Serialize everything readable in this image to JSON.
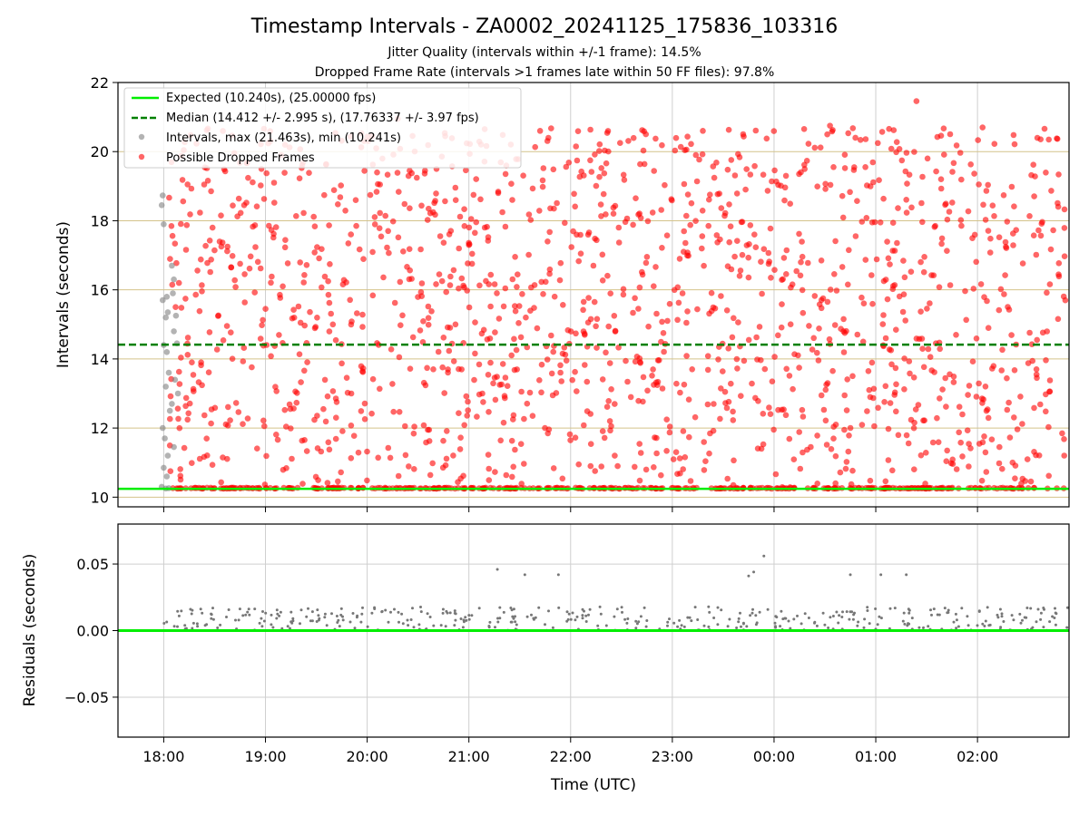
{
  "figure": {
    "title": "Timestamp Intervals - ZA0002_20241125_175836_103316",
    "subtitle_1": "Jitter Quality (intervals within +/-1 frame): 14.5%",
    "subtitle_2": "Dropped Frame Rate (intervals >1 frames late within 50 FF files): 97.8%"
  },
  "colors": {
    "expected": "#00ee00",
    "median": "#008000",
    "intervals": "#808080",
    "dropped": "#ff0000",
    "hgrid_top": "#d4c38a",
    "grid": "#cfcfcf",
    "residual_points": "#777777"
  },
  "chart_data": [
    {
      "type": "scatter",
      "ylabel": "Intervals (seconds)",
      "xlabel": "",
      "x_unit": "hours since 18:00 UTC",
      "xlim": [
        -0.45,
        8.9
      ],
      "ylim": [
        9.72,
        22.0
      ],
      "yticks": [
        10,
        12,
        14,
        16,
        18,
        20,
        22
      ],
      "grid": true,
      "legend_position": "top-left",
      "legend": [
        "Expected (10.240s), (25.00000 fps)",
        "Median (14.412 +/- 2.995 s), (17.76337 +/- 3.97 fps)",
        "Intervals, max (21.463s), min (10.241s)",
        "Possible Dropped Frames"
      ],
      "expected_interval": 10.24,
      "median_interval": 14.412,
      "interval_max": 21.463,
      "interval_min": 10.241,
      "series": [
        {
          "name": "Intervals, max (21.463s), min (10.241s)",
          "points": [
            [
              -0.01,
              18.73
            ],
            [
              -0.02,
              18.45
            ],
            [
              0.0,
              17.9
            ],
            [
              0.03,
              15.8
            ],
            [
              -0.01,
              15.7
            ],
            [
              0.02,
              15.2
            ],
            [
              0.04,
              15.35
            ],
            [
              0.0,
              14.4
            ],
            [
              0.03,
              14.2
            ],
            [
              0.05,
              13.6
            ],
            [
              0.02,
              13.2
            ],
            [
              0.06,
              12.5
            ],
            [
              -0.01,
              12.0
            ],
            [
              0.01,
              11.7
            ],
            [
              0.04,
              11.2
            ],
            [
              0.0,
              10.85
            ],
            [
              0.03,
              10.6
            ],
            [
              -0.02,
              10.3
            ],
            [
              0.02,
              10.25
            ],
            [
              0.05,
              10.26
            ],
            [
              0.08,
              16.7
            ],
            [
              0.1,
              16.3
            ],
            [
              0.09,
              15.9
            ],
            [
              0.12,
              15.25
            ],
            [
              0.1,
              14.8
            ],
            [
              0.13,
              14.45
            ],
            [
              0.11,
              13.4
            ],
            [
              0.14,
              13.0
            ],
            [
              0.08,
              12.7
            ],
            [
              0.1,
              11.45
            ]
          ]
        },
        {
          "name": "Possible Dropped Frames",
          "generator": {
            "count": 1500,
            "x_range": [
              0.05,
              8.9
            ],
            "y_range": [
              10.27,
              21.463
            ],
            "baseline_count": 400,
            "baseline_y": 10.245
          }
        }
      ],
      "hlines": [
        {
          "name": "Expected (10.240s), (25.00000 fps)",
          "y": 10.24,
          "style": "solid"
        },
        {
          "name": "Median (14.412 +/- 2.995 s), (17.76337 +/- 3.97 fps)",
          "y": 14.412,
          "style": "dashed"
        }
      ]
    },
    {
      "type": "scatter",
      "ylabel": "Residuals (seconds)",
      "xlabel": "Time (UTC)",
      "x_unit": "hours since 18:00 UTC",
      "xlim": [
        -0.45,
        8.9
      ],
      "ylim": [
        -0.08,
        0.08
      ],
      "yticks": [
        -0.05,
        0.0,
        0.05
      ],
      "ytick_labels": [
        "−0.05",
        "0.00",
        "0.05"
      ],
      "xticks": [
        0,
        1,
        2,
        3,
        4,
        5,
        6,
        7,
        8
      ],
      "xtick_labels": [
        "18:00",
        "19:00",
        "20:00",
        "21:00",
        "22:00",
        "23:00",
        "00:00",
        "01:00",
        "02:00"
      ],
      "grid": true,
      "zero_line": 0.0,
      "outliers": [
        [
          3.28,
          0.046
        ],
        [
          3.55,
          0.042
        ],
        [
          3.88,
          0.042
        ],
        [
          5.75,
          0.041
        ],
        [
          5.8,
          0.044
        ],
        [
          5.9,
          0.056
        ],
        [
          6.75,
          0.042
        ],
        [
          7.05,
          0.042
        ],
        [
          7.3,
          0.042
        ]
      ],
      "generator": {
        "count": 420,
        "x_range": [
          0.0,
          8.9
        ],
        "y_range": [
          0.0,
          0.018
        ]
      }
    }
  ]
}
